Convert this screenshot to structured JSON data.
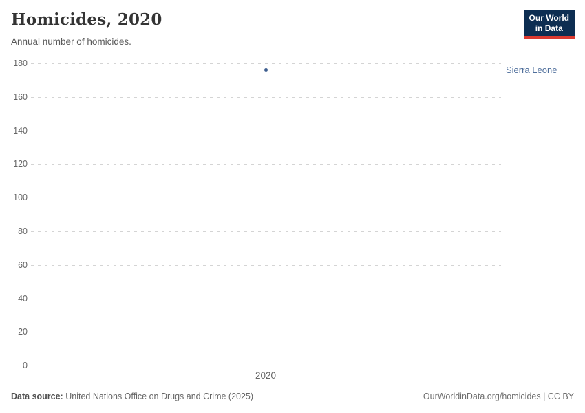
{
  "header": {
    "title": "Homicides, 2020",
    "subtitle": "Annual number of homicides."
  },
  "logo": {
    "line1": "Our World",
    "line2": "in Data",
    "bg_color": "#0d2e52",
    "accent_color": "#dc3a30"
  },
  "chart_data": {
    "type": "scatter",
    "title": "Homicides, 2020",
    "subtitle": "Annual number of homicides.",
    "x": [
      2020
    ],
    "series": [
      {
        "name": "Sierra Leone",
        "values": [
          176
        ],
        "color": "#3d5e8f",
        "label_color": "#4e6e9b"
      }
    ],
    "xlabel": "",
    "ylabel": "",
    "ylim": [
      0,
      180
    ],
    "yticks": [
      180,
      160,
      140,
      120,
      100,
      80,
      60,
      40,
      20,
      0
    ],
    "xticks": [
      "2020"
    ],
    "grid": "horizontal-dashed",
    "legend_position": "entity-label-right-of-point"
  },
  "footer": {
    "source_label": "Data source:",
    "source_text": "United Nations Office on Drugs and Crime (2025)",
    "attribution": "OurWorldinData.org/homicides | CC BY"
  }
}
